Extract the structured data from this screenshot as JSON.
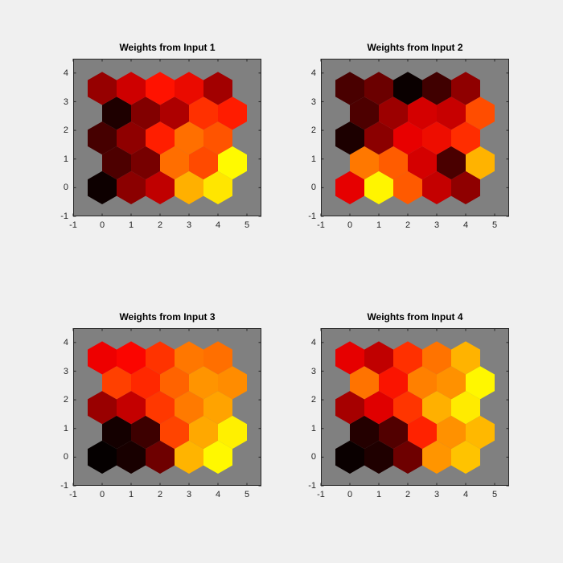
{
  "figure": {
    "background": "#f0f0f0",
    "axes_background": "#808080",
    "axis_border_color": "#262626",
    "tick_color": "#262626",
    "tick_label_color": "#262626",
    "title_color": "#000000"
  },
  "chart_data": [
    {
      "type": "heatmap",
      "subtype": "som-weight-plane-hexgrid",
      "title": "Weights from Input 1",
      "xlabel": "",
      "ylabel": "",
      "xlim": [
        -1,
        5.5
      ],
      "ylim": [
        -1,
        4.5
      ],
      "x_ticks": [
        -1,
        0,
        1,
        2,
        3,
        4,
        5
      ],
      "y_ticks": [
        -1,
        0,
        1,
        2,
        3,
        4
      ],
      "grid": {
        "columns": 5,
        "rows": 5,
        "row_y_spacing": 0.866,
        "odd_row_x_offset": 0.5,
        "hex_width": 1.0
      },
      "cell_colors_rows_bottom_to_top": [
        [
          "#0D0000",
          "#8B0000",
          "#C00000",
          "#FFB000",
          "#FFE600"
        ],
        [
          "#4D0000",
          "#770000",
          "#FF6E00",
          "#FF4A00",
          "#FFFA00"
        ],
        [
          "#460000",
          "#8F0000",
          "#FF1E00",
          "#FF6F00",
          "#FF5400"
        ],
        [
          "#1E0000",
          "#820000",
          "#AD0000",
          "#FF3000",
          "#FF1C00"
        ],
        [
          "#960000",
          "#CE0000",
          "#FF1200",
          "#EA0A00",
          "#A20000"
        ]
      ]
    },
    {
      "type": "heatmap",
      "subtype": "som-weight-plane-hexgrid",
      "title": "Weights from Input 2",
      "xlabel": "",
      "ylabel": "",
      "xlim": [
        -1,
        5.5
      ],
      "ylim": [
        -1,
        4.5
      ],
      "x_ticks": [
        -1,
        0,
        1,
        2,
        3,
        4,
        5
      ],
      "y_ticks": [
        -1,
        0,
        1,
        2,
        3,
        4
      ],
      "grid": {
        "columns": 5,
        "rows": 5,
        "row_y_spacing": 0.866,
        "odd_row_x_offset": 0.5,
        "hex_width": 1.0
      },
      "cell_colors_rows_bottom_to_top": [
        [
          "#E60000",
          "#FFF500",
          "#FF5A00",
          "#C40000",
          "#8F0000"
        ],
        [
          "#FF7800",
          "#FF5C00",
          "#D40000",
          "#4A0000",
          "#FFB300"
        ],
        [
          "#1C0000",
          "#8B0000",
          "#E80000",
          "#EE0D00",
          "#FF2D00"
        ],
        [
          "#4D0000",
          "#9C0000",
          "#D40000",
          "#C70000",
          "#FF4D00"
        ],
        [
          "#490000",
          "#6B0000",
          "#0A0000",
          "#400000",
          "#8F0000"
        ]
      ]
    },
    {
      "type": "heatmap",
      "subtype": "som-weight-plane-hexgrid",
      "title": "Weights from Input 3",
      "xlabel": "",
      "ylabel": "",
      "xlim": [
        -1,
        5.5
      ],
      "ylim": [
        -1,
        4.5
      ],
      "x_ticks": [
        -1,
        0,
        1,
        2,
        3,
        4,
        5
      ],
      "y_ticks": [
        -1,
        0,
        1,
        2,
        3,
        4
      ],
      "grid": {
        "columns": 5,
        "rows": 5,
        "row_y_spacing": 0.866,
        "odd_row_x_offset": 0.5,
        "hex_width": 1.0
      },
      "cell_colors_rows_bottom_to_top": [
        [
          "#050000",
          "#180000",
          "#6E0000",
          "#FFB400",
          "#FFF800"
        ],
        [
          "#140000",
          "#3D0000",
          "#FF4400",
          "#FFA800",
          "#FFF000"
        ],
        [
          "#990000",
          "#C40000",
          "#FF3800",
          "#FF7A00",
          "#FFA300"
        ],
        [
          "#FF4000",
          "#FF2800",
          "#FF6300",
          "#FF9400",
          "#FF8C00"
        ],
        [
          "#EE0000",
          "#FB0500",
          "#FF3300",
          "#FF7700",
          "#FF6F00"
        ]
      ]
    },
    {
      "type": "heatmap",
      "subtype": "som-weight-plane-hexgrid",
      "title": "Weights from Input 4",
      "xlabel": "",
      "ylabel": "",
      "xlim": [
        -1,
        5.5
      ],
      "ylim": [
        -1,
        4.5
      ],
      "x_ticks": [
        -1,
        0,
        1,
        2,
        3,
        4,
        5
      ],
      "y_ticks": [
        -1,
        0,
        1,
        2,
        3,
        4
      ],
      "grid": {
        "columns": 5,
        "rows": 5,
        "row_y_spacing": 0.866,
        "odd_row_x_offset": 0.5,
        "hex_width": 1.0
      },
      "cell_colors_rows_bottom_to_top": [
        [
          "#0A0000",
          "#1F0000",
          "#6E0000",
          "#FF9500",
          "#FFC300"
        ],
        [
          "#240000",
          "#520000",
          "#FF2200",
          "#FF9100",
          "#FFB800"
        ],
        [
          "#A60000",
          "#E00000",
          "#FF3500",
          "#FFB000",
          "#FFEB00"
        ],
        [
          "#FF7300",
          "#FA1400",
          "#FF8000",
          "#FF9100",
          "#FFF700"
        ],
        [
          "#E60000",
          "#C00000",
          "#FF3000",
          "#FF7300",
          "#FFB300"
        ]
      ]
    }
  ]
}
